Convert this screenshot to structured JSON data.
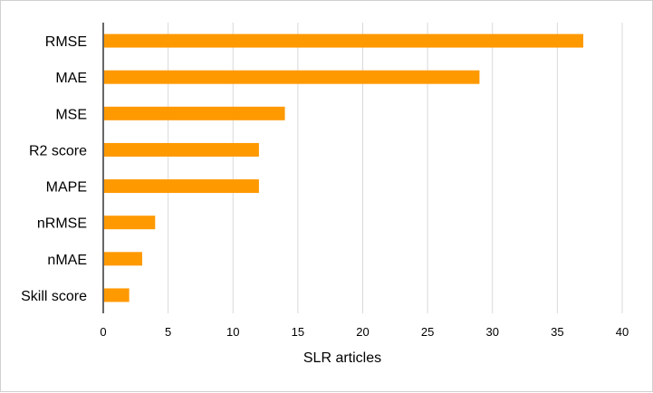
{
  "chart_data": {
    "type": "bar",
    "orientation": "horizontal",
    "categories": [
      "RMSE",
      "MAE",
      "MSE",
      "R2 score",
      "MAPE",
      "nRMSE",
      "nMAE",
      "Skill score"
    ],
    "values": [
      37,
      29,
      14,
      12,
      12,
      4,
      3,
      2
    ],
    "title": "",
    "xlabel": "SLR articles",
    "ylabel": "",
    "xlim": [
      0,
      40
    ],
    "xticks": [
      0,
      5,
      10,
      15,
      20,
      25,
      30,
      35,
      40
    ],
    "grid": "vertical",
    "bar_color": "#FF9900",
    "grid_color": "#d9d9d9",
    "axis_color": "#000000"
  }
}
